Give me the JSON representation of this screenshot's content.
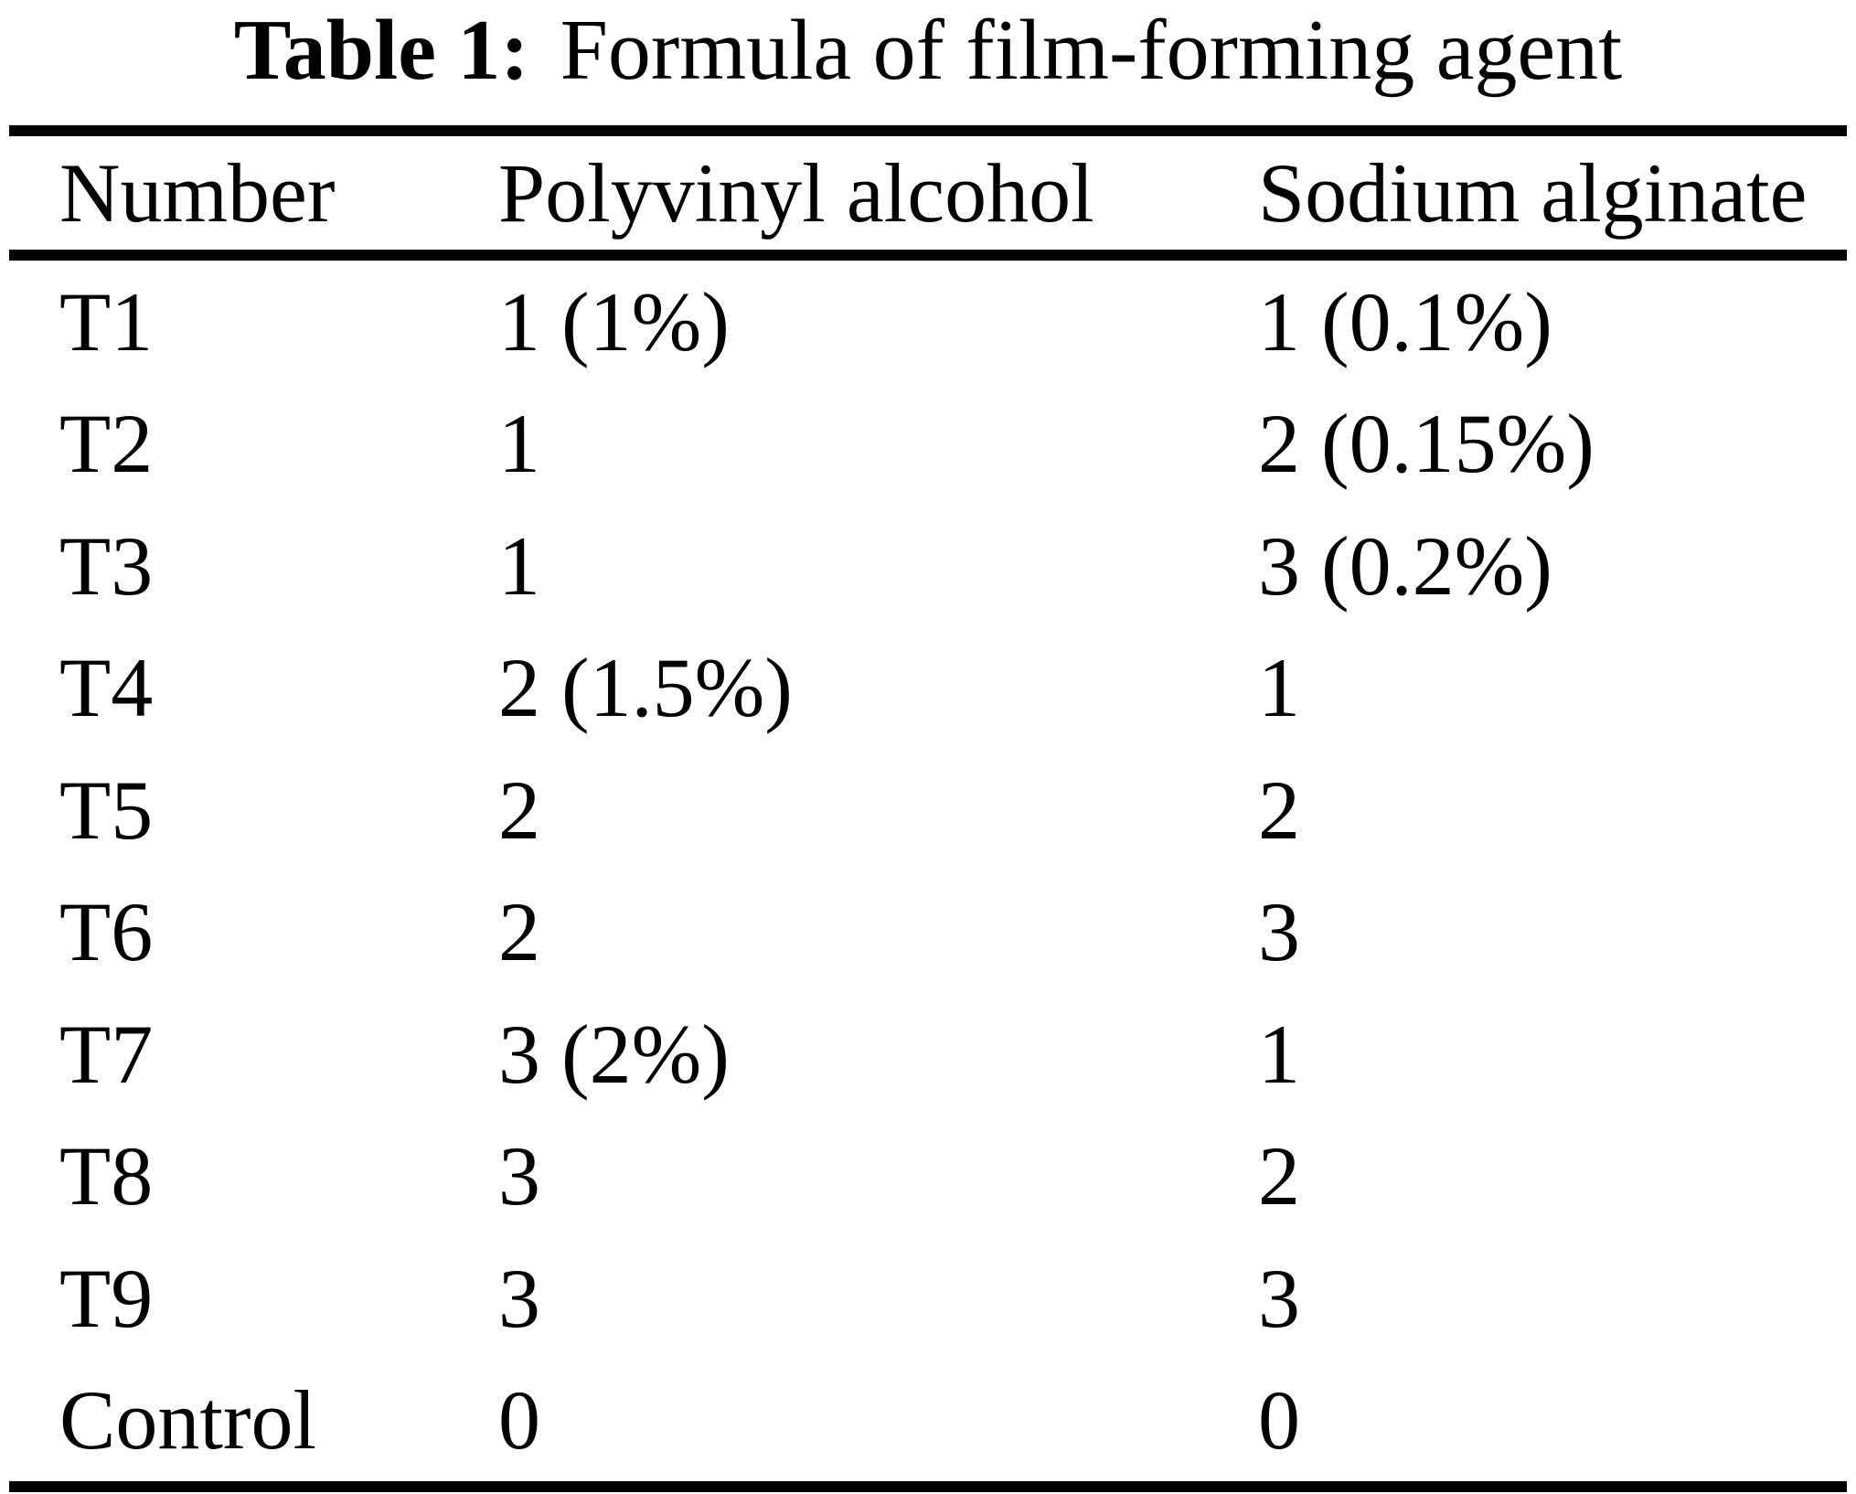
{
  "page": {
    "background": "#ffffff",
    "text_color": "#000000",
    "rule_color": "#000000"
  },
  "table": {
    "caption": {
      "label": "Table 1:",
      "text": "Formula of film-forming agent"
    },
    "columns": [
      "Number",
      "Polyvinyl alcohol",
      "Sodium alginate"
    ],
    "column_keys": [
      "number",
      "polyvinyl_alcohol",
      "sodium_alginate"
    ],
    "rows": [
      {
        "number": "T1",
        "polyvinyl_alcohol": "1 (1%)",
        "sodium_alginate": "1 (0.1%)"
      },
      {
        "number": "T2",
        "polyvinyl_alcohol": "1",
        "sodium_alginate": "2 (0.15%)"
      },
      {
        "number": "T3",
        "polyvinyl_alcohol": "1",
        "sodium_alginate": "3 (0.2%)"
      },
      {
        "number": "T4",
        "polyvinyl_alcohol": "2 (1.5%)",
        "sodium_alginate": "1"
      },
      {
        "number": "T5",
        "polyvinyl_alcohol": "2",
        "sodium_alginate": "2"
      },
      {
        "number": "T6",
        "polyvinyl_alcohol": "2",
        "sodium_alginate": "3"
      },
      {
        "number": "T7",
        "polyvinyl_alcohol": "3 (2%)",
        "sodium_alginate": "1"
      },
      {
        "number": "T8",
        "polyvinyl_alcohol": "3",
        "sodium_alginate": "2"
      },
      {
        "number": "T9",
        "polyvinyl_alcohol": "3",
        "sodium_alginate": "3"
      },
      {
        "number": "Control",
        "polyvinyl_alcohol": "0",
        "sodium_alginate": "0"
      }
    ]
  }
}
